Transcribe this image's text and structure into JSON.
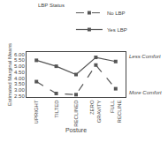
{
  "chart_data": {
    "type": "line",
    "categories": [
      "UPRIGHT",
      "TILTED",
      "RECLINED",
      "ZERO\nGRAVITY",
      "FULL\nRECLINE"
    ],
    "series": [
      {
        "name": "Yes LBP",
        "color": "#555555",
        "line_style": "solid",
        "marker": "square",
        "values": [
          5.5,
          5.0,
          4.3,
          5.75,
          5.4
        ]
      },
      {
        "name": "No LBP",
        "color": "#555555",
        "line_style": "dashed",
        "marker": "square",
        "values": [
          3.7,
          2.7,
          2.6,
          5.1,
          3.1
        ]
      }
    ],
    "xlabel": "Posture",
    "ylabel": "Estimated Marginal Means",
    "legend_title": "LBP Status",
    "legend": "top",
    "annotations": [
      "Less Comfort",
      "More Comfort"
    ],
    "ylim": [
      2.4,
      6.2
    ],
    "yticks": [
      {
        "value": 2.5,
        "label": "2.50"
      },
      {
        "value": 3.0,
        "label": "3.00"
      },
      {
        "value": 3.5,
        "label": "3.50"
      },
      {
        "value": 4.0,
        "label": "4.00"
      },
      {
        "value": 4.5,
        "label": "4.50"
      },
      {
        "value": 5.0,
        "label": "5.00"
      },
      {
        "value": 5.5,
        "label": "5.50"
      },
      {
        "value": 6.0,
        "label": "6.00"
      }
    ],
    "grid": false
  }
}
